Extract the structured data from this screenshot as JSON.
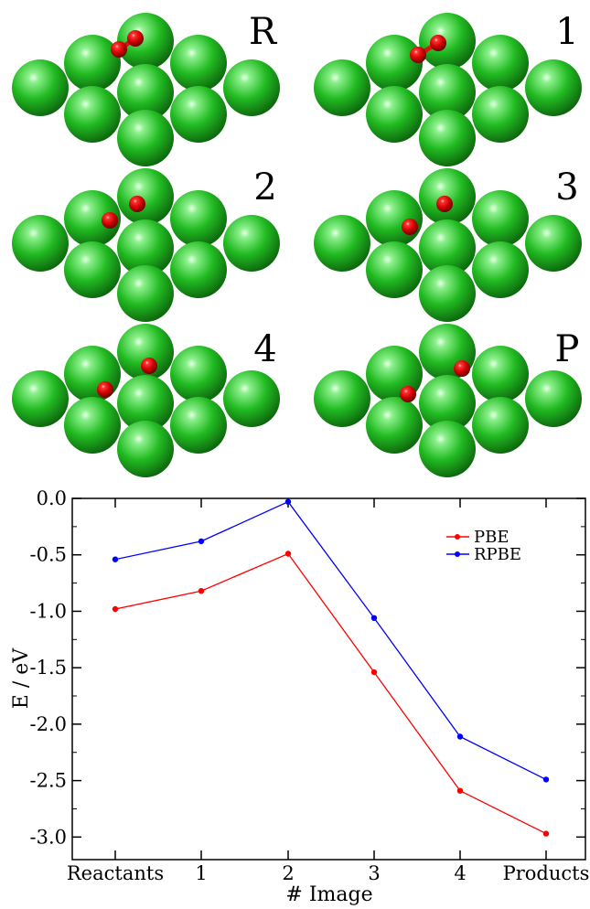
{
  "colors": {
    "surface_atom": "#22bb22",
    "surface_atom_dark": "#0a5a0a",
    "adsorbate_atom": "#dd1111",
    "adsorbate_atom_dark": "#660000",
    "pbe": "#ff0000",
    "rpbe": "#0000ff"
  },
  "panels": [
    {
      "label": "R",
      "adsorbate": "O2 molecule"
    },
    {
      "label": "1",
      "adsorbate": "O2 stretched"
    },
    {
      "label": "2",
      "adsorbate": "O atoms separating"
    },
    {
      "label": "3",
      "adsorbate": "O atoms separating"
    },
    {
      "label": "4",
      "adsorbate": "O atoms dissociated"
    },
    {
      "label": "P",
      "adsorbate": "O atoms dissociated"
    }
  ],
  "chart_data": {
    "type": "line",
    "title": "",
    "xlabel": "# Image",
    "ylabel": "E / eV",
    "categories": [
      "Reactants",
      "1",
      "2",
      "3",
      "4",
      "Products"
    ],
    "ylim": [
      -3.2,
      0.0
    ],
    "yticks": [
      "0.0",
      "-0.5",
      "-1.0",
      "-1.5",
      "-2.0",
      "-2.5",
      "-3.0"
    ],
    "ytick_values": [
      0.0,
      -0.5,
      -1.0,
      -1.5,
      -2.0,
      -2.5,
      -3.0
    ],
    "legend_position": "top-right",
    "grid": false,
    "series": [
      {
        "name": "PBE",
        "color": "#ff0000",
        "values": [
          -0.98,
          -0.82,
          -0.49,
          -1.54,
          -2.59,
          -2.97
        ]
      },
      {
        "name": "RPBE",
        "color": "#0000ff",
        "values": [
          -0.54,
          -0.38,
          -0.03,
          -1.06,
          -2.11,
          -2.49
        ]
      }
    ]
  }
}
